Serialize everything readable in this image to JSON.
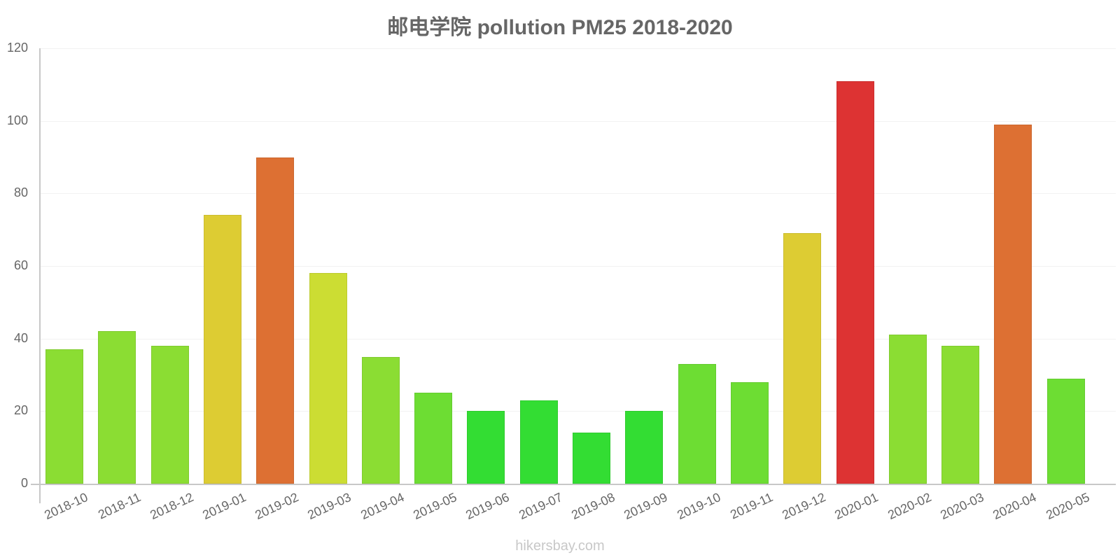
{
  "chart": {
    "title": "邮电学院 pollution PM25 2018-2020",
    "footer": "hikersbay.com"
  },
  "y_axis": {
    "ticks": [
      "0",
      "20",
      "40",
      "60",
      "80",
      "100",
      "120"
    ]
  },
  "x_axis": {
    "labels": [
      "2018-10",
      "2018-11",
      "2018-12",
      "2019-01",
      "2019-02",
      "2019-03",
      "2019-04",
      "2019-05",
      "2019-06",
      "2019-07",
      "2019-08",
      "2019-09",
      "2019-10",
      "2019-11",
      "2019-12",
      "2020-01",
      "2020-02",
      "2020-03",
      "2020-04",
      "2020-05"
    ]
  },
  "colors": {
    "green_bright": "#33dd33",
    "green_mid": "#6ddd33",
    "green_yellow": "#8bdd33",
    "yellow_green": "#ccdd33",
    "yellow": "#ddcc33",
    "orange": "#dd7033",
    "red": "#dd3333"
  },
  "chart_data": {
    "type": "bar",
    "title": "邮电学院 pollution PM25 2018-2020",
    "xlabel": "",
    "ylabel": "",
    "ylim": [
      0,
      120
    ],
    "yticks": [
      0,
      20,
      40,
      60,
      80,
      100,
      120
    ],
    "grid": true,
    "legend": null,
    "categories": [
      "2018-10",
      "2018-11",
      "2018-12",
      "2019-01",
      "2019-02",
      "2019-03",
      "2019-04",
      "2019-05",
      "2019-06",
      "2019-07",
      "2019-08",
      "2019-09",
      "2019-10",
      "2019-11",
      "2019-12",
      "2020-01",
      "2020-02",
      "2020-03",
      "2020-04",
      "2020-05"
    ],
    "values": [
      37,
      42,
      38,
      74,
      90,
      58,
      35,
      25,
      20,
      23,
      14,
      20,
      33,
      28,
      69,
      111,
      41,
      38,
      99,
      29
    ],
    "bar_colors": [
      "#8bdd33",
      "#8bdd33",
      "#8bdd33",
      "#ddcc33",
      "#dd7033",
      "#ccdd33",
      "#8bdd33",
      "#6ddd33",
      "#33dd33",
      "#33dd33",
      "#33dd33",
      "#33dd33",
      "#6ddd33",
      "#6ddd33",
      "#ddcc33",
      "#dd3333",
      "#8bdd33",
      "#8bdd33",
      "#dd7033",
      "#6ddd33"
    ],
    "source": "hikersbay.com"
  }
}
